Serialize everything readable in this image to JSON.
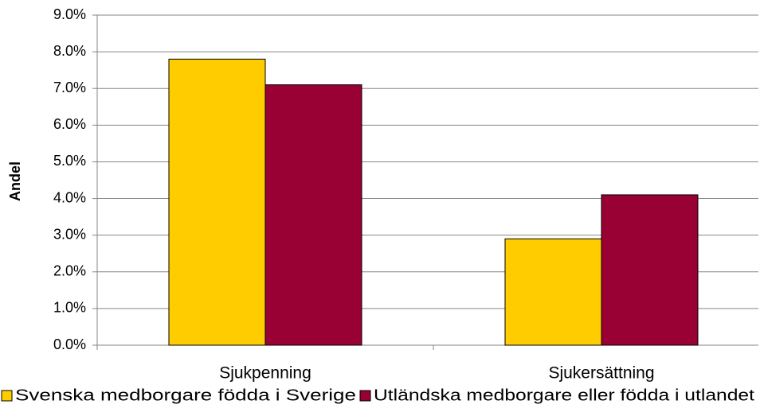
{
  "chart_data": {
    "type": "bar",
    "y_label": "Andel",
    "categories": [
      "Sjukpenning",
      "Sjukersättning"
    ],
    "series": [
      {
        "name": "Svenska medborgare födda i Sverige",
        "color": "#ffcc00",
        "values": [
          7.8,
          2.9
        ]
      },
      {
        "name": "Utländska medborgare eller födda i utlandet",
        "color": "#990033",
        "values": [
          7.1,
          4.1
        ]
      }
    ],
    "ylim": [
      0,
      9
    ],
    "yticks": [
      {
        "value": 0,
        "label": "0.0%"
      },
      {
        "value": 1,
        "label": "1.0%"
      },
      {
        "value": 2,
        "label": "2.0%"
      },
      {
        "value": 3,
        "label": "3.0%"
      },
      {
        "value": 4,
        "label": "4.0%"
      },
      {
        "value": 5,
        "label": "5.0%"
      },
      {
        "value": 6,
        "label": "6.0%"
      },
      {
        "value": 7,
        "label": "7.0%"
      },
      {
        "value": 8,
        "label": "8.0%"
      },
      {
        "value": 9,
        "label": "9.0%"
      }
    ],
    "grid": true,
    "legend": "bottom"
  }
}
